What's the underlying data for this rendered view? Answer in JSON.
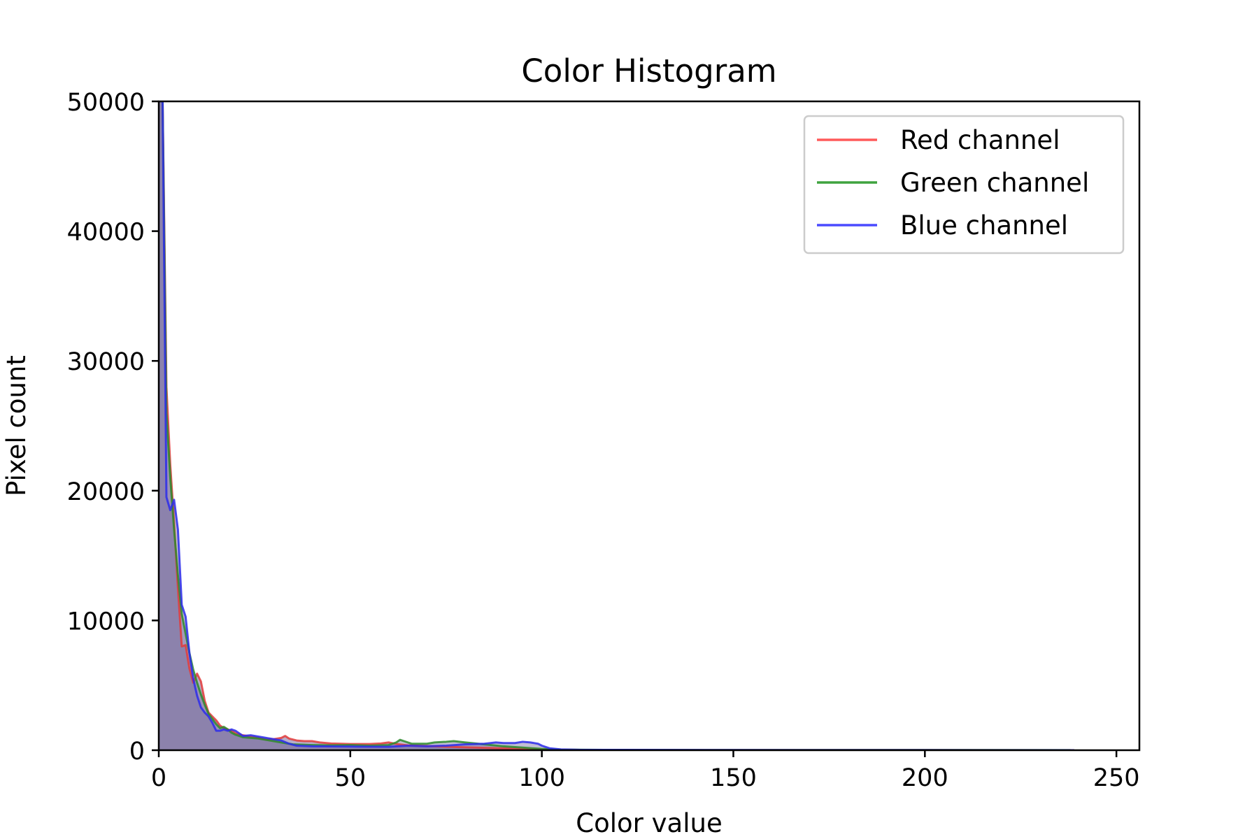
{
  "chart_data": {
    "type": "line",
    "title": "Color Histogram",
    "xlabel": "Color value",
    "ylabel": "Pixel count",
    "xlim": [
      0,
      256
    ],
    "ylim": [
      0,
      50000
    ],
    "xticks": [
      0,
      50,
      100,
      150,
      200,
      250
    ],
    "yticks": [
      0,
      10000,
      20000,
      30000,
      40000,
      50000
    ],
    "grid": false,
    "legend_position": "top-right",
    "fill_under_series": true,
    "fill_color": "#7b6e9f",
    "series": [
      {
        "name": "Red channel",
        "color": "#ff5a5a",
        "stroke": "#e23b3b",
        "points": [
          [
            0,
            50000
          ],
          [
            1,
            50000
          ],
          [
            2,
            28000
          ],
          [
            3,
            22000
          ],
          [
            4,
            17500
          ],
          [
            5,
            12500
          ],
          [
            6,
            8000
          ],
          [
            7,
            8100
          ],
          [
            8,
            6300
          ],
          [
            9,
            5200
          ],
          [
            10,
            5900
          ],
          [
            11,
            5300
          ],
          [
            12,
            3800
          ],
          [
            13,
            2900
          ],
          [
            14,
            2600
          ],
          [
            15,
            2300
          ],
          [
            16,
            1900
          ],
          [
            17,
            1700
          ],
          [
            18,
            1600
          ],
          [
            19,
            1500
          ],
          [
            20,
            1300
          ],
          [
            22,
            1150
          ],
          [
            24,
            1050
          ],
          [
            26,
            950
          ],
          [
            28,
            850
          ],
          [
            30,
            850
          ],
          [
            32,
            950
          ],
          [
            33,
            1100
          ],
          [
            34,
            900
          ],
          [
            36,
            750
          ],
          [
            38,
            700
          ],
          [
            40,
            700
          ],
          [
            42,
            600
          ],
          [
            45,
            520
          ],
          [
            50,
            480
          ],
          [
            55,
            480
          ],
          [
            58,
            520
          ],
          [
            60,
            600
          ],
          [
            62,
            480
          ],
          [
            65,
            380
          ],
          [
            70,
            320
          ],
          [
            80,
            220
          ],
          [
            90,
            140
          ],
          [
            100,
            70
          ],
          [
            110,
            30
          ],
          [
            130,
            15
          ],
          [
            160,
            10
          ],
          [
            200,
            10
          ],
          [
            239,
            0
          ]
        ]
      },
      {
        "name": "Green channel",
        "color": "#3fa33f",
        "stroke": "#2c8a2c",
        "points": [
          [
            0,
            50000
          ],
          [
            1,
            50000
          ],
          [
            2,
            26000
          ],
          [
            3,
            21000
          ],
          [
            4,
            17000
          ],
          [
            5,
            13500
          ],
          [
            6,
            10500
          ],
          [
            7,
            9000
          ],
          [
            8,
            7500
          ],
          [
            9,
            6200
          ],
          [
            10,
            5200
          ],
          [
            11,
            4300
          ],
          [
            12,
            3500
          ],
          [
            13,
            2800
          ],
          [
            14,
            2400
          ],
          [
            15,
            2000
          ],
          [
            16,
            1700
          ],
          [
            17,
            1800
          ],
          [
            18,
            1600
          ],
          [
            19,
            1350
          ],
          [
            20,
            1200
          ],
          [
            22,
            1000
          ],
          [
            24,
            950
          ],
          [
            26,
            900
          ],
          [
            28,
            800
          ],
          [
            30,
            700
          ],
          [
            32,
            600
          ],
          [
            35,
            450
          ],
          [
            40,
            400
          ],
          [
            45,
            380
          ],
          [
            50,
            400
          ],
          [
            55,
            350
          ],
          [
            60,
            400
          ],
          [
            62,
            600
          ],
          [
            63,
            800
          ],
          [
            64,
            700
          ],
          [
            66,
            500
          ],
          [
            70,
            500
          ],
          [
            72,
            600
          ],
          [
            75,
            650
          ],
          [
            77,
            700
          ],
          [
            80,
            600
          ],
          [
            85,
            450
          ],
          [
            90,
            300
          ],
          [
            95,
            200
          ],
          [
            100,
            100
          ],
          [
            105,
            50
          ],
          [
            120,
            20
          ],
          [
            180,
            10
          ],
          [
            215,
            15
          ],
          [
            238,
            5
          ]
        ]
      },
      {
        "name": "Blue channel",
        "color": "#4b4bff",
        "stroke": "#2b2bea",
        "points": [
          [
            0,
            50000
          ],
          [
            1,
            50000
          ],
          [
            2,
            19500
          ],
          [
            3,
            18500
          ],
          [
            4,
            19300
          ],
          [
            5,
            17000
          ],
          [
            6,
            11200
          ],
          [
            7,
            10300
          ],
          [
            8,
            7500
          ],
          [
            9,
            5500
          ],
          [
            10,
            4200
          ],
          [
            11,
            3300
          ],
          [
            12,
            2900
          ],
          [
            13,
            2600
          ],
          [
            14,
            2100
          ],
          [
            15,
            1500
          ],
          [
            16,
            1500
          ],
          [
            17,
            1600
          ],
          [
            18,
            1500
          ],
          [
            19,
            1600
          ],
          [
            20,
            1500
          ],
          [
            22,
            1100
          ],
          [
            24,
            1150
          ],
          [
            26,
            1050
          ],
          [
            28,
            950
          ],
          [
            30,
            850
          ],
          [
            32,
            750
          ],
          [
            34,
            500
          ],
          [
            36,
            350
          ],
          [
            40,
            300
          ],
          [
            50,
            280
          ],
          [
            60,
            260
          ],
          [
            65,
            350
          ],
          [
            70,
            300
          ],
          [
            75,
            350
          ],
          [
            80,
            450
          ],
          [
            85,
            500
          ],
          [
            88,
            600
          ],
          [
            90,
            550
          ],
          [
            93,
            550
          ],
          [
            95,
            650
          ],
          [
            97,
            600
          ],
          [
            99,
            500
          ],
          [
            100,
            350
          ],
          [
            102,
            150
          ],
          [
            105,
            60
          ],
          [
            110,
            30
          ],
          [
            150,
            10
          ],
          [
            200,
            5
          ],
          [
            239,
            0
          ]
        ]
      }
    ]
  }
}
